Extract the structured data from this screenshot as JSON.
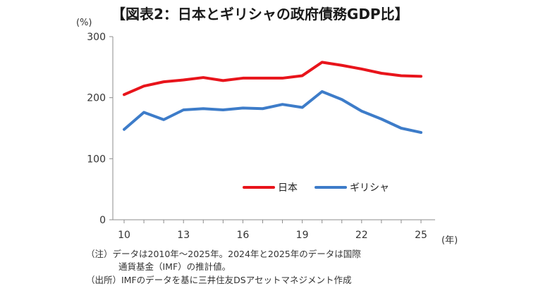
{
  "chart_data": {
    "type": "line",
    "title": "【図表2：日本とギリシャの政府債務GDP比】",
    "ylabel": "(%)",
    "xlabel": "(年)",
    "ylim": [
      0,
      300
    ],
    "xlim": [
      10,
      25
    ],
    "yticks": [
      "0",
      "100",
      "200",
      "300"
    ],
    "xticks": [
      "10",
      "13",
      "16",
      "19",
      "22",
      "25"
    ],
    "x": [
      10,
      11,
      12,
      13,
      14,
      15,
      16,
      17,
      18,
      19,
      20,
      21,
      22,
      23,
      24,
      25
    ],
    "grid": false,
    "legend_position": "lower-right",
    "series": [
      {
        "name": "日本",
        "color": "#e8141b",
        "values": [
          205,
          219,
          226,
          229,
          233,
          228,
          232,
          232,
          232,
          236,
          258,
          253,
          247,
          240,
          236,
          235
        ]
      },
      {
        "name": "ギリシャ",
        "color": "#3d7cc9",
        "values": [
          148,
          176,
          164,
          180,
          182,
          180,
          183,
          182,
          189,
          184,
          210,
          197,
          178,
          165,
          150,
          143
        ]
      }
    ]
  },
  "notes": {
    "note_line1": "（注）データは2010年～2025年。2024年と2025年のデータは国際",
    "note_line2": "通貨基金（IMF）の推計値。",
    "source_line": "（出所）IMFのデータを基に三井住友DSアセットマネジメント作成"
  }
}
